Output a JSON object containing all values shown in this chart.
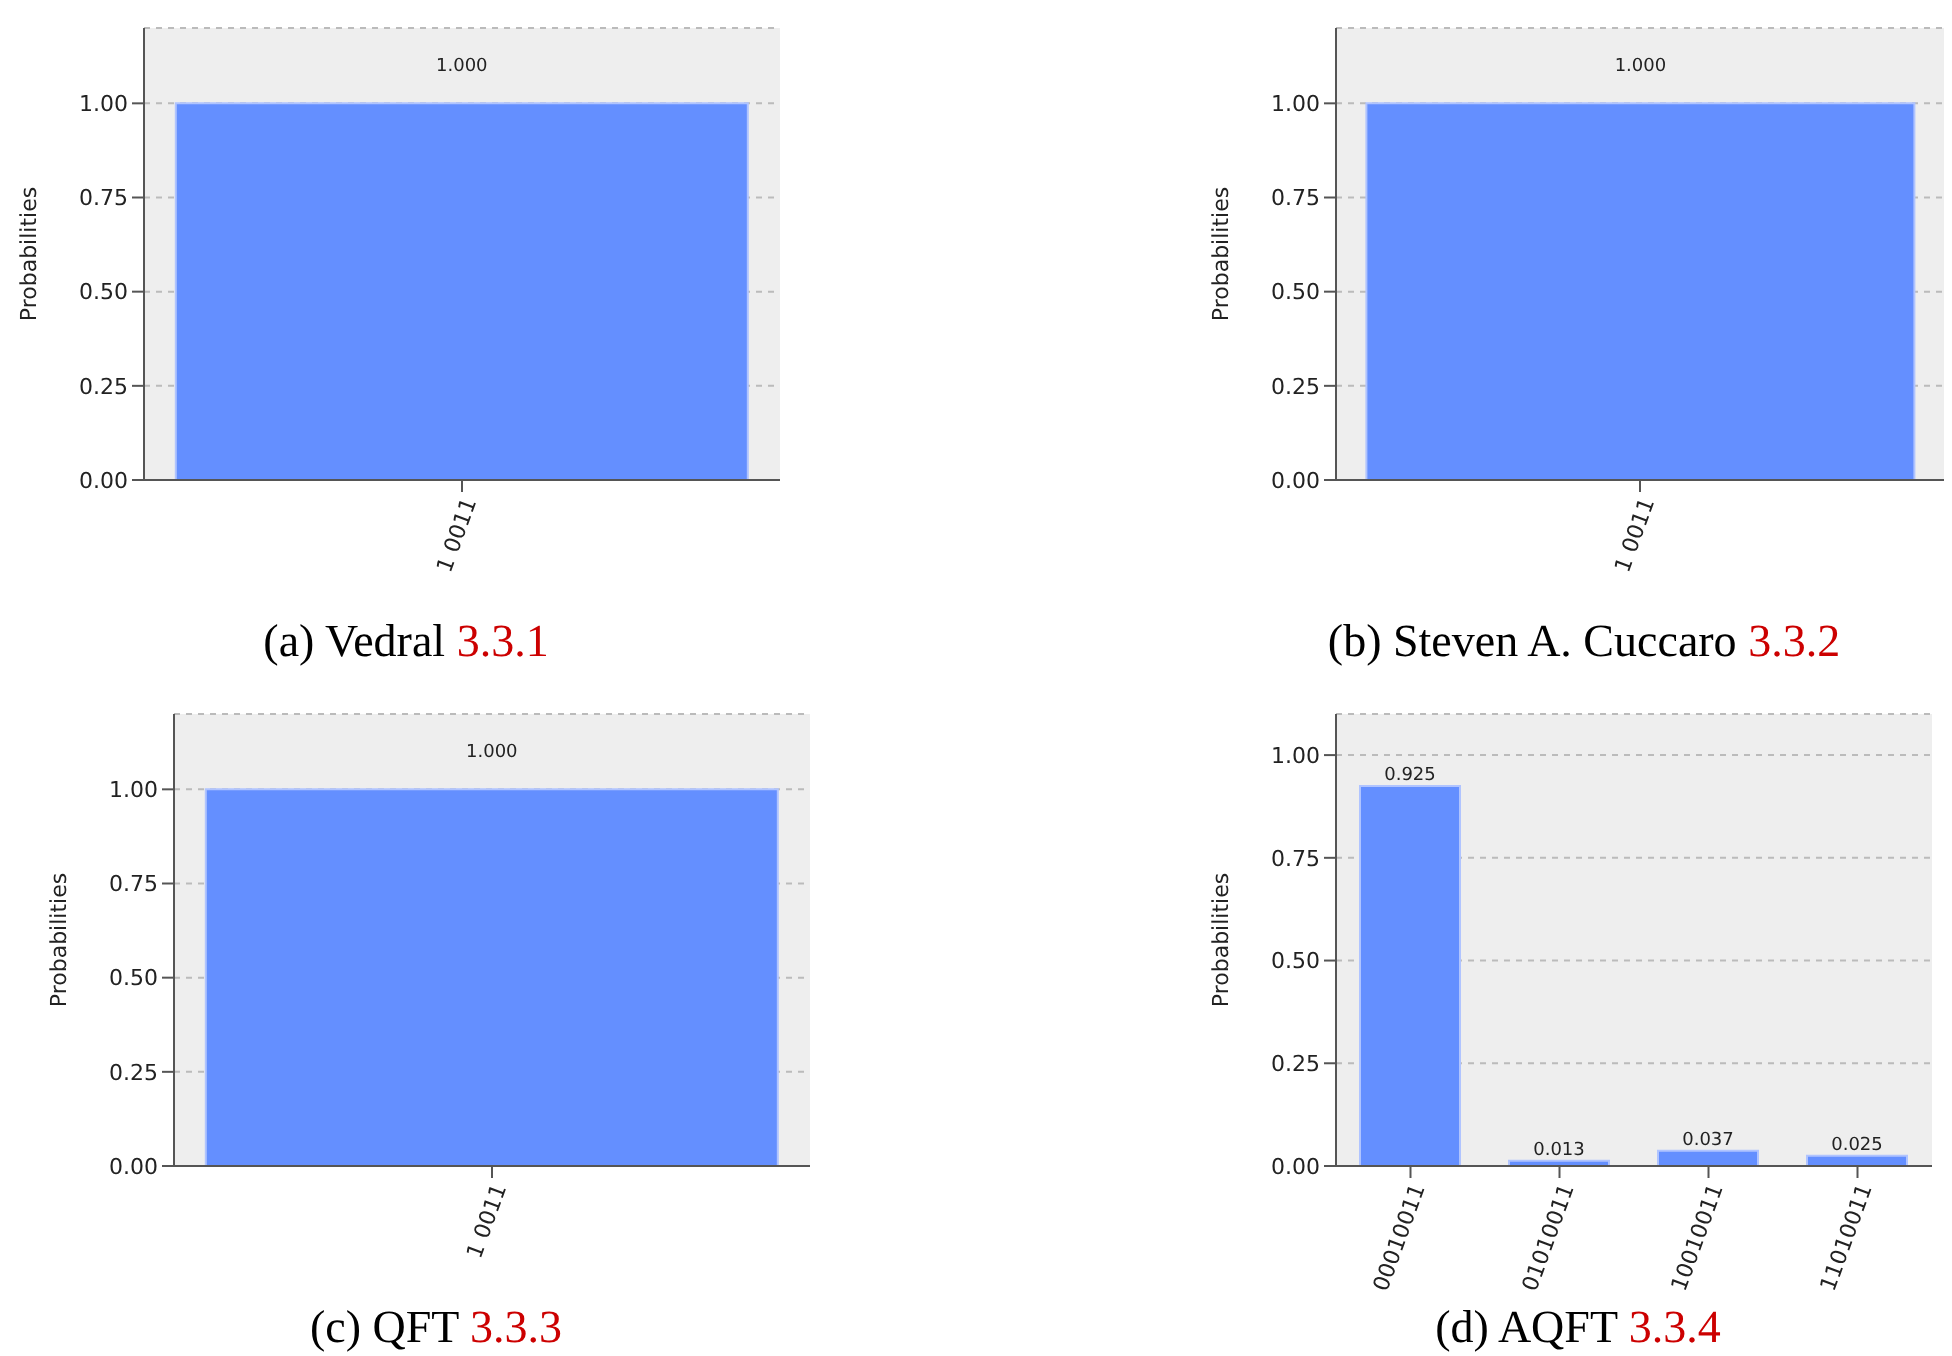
{
  "chart_data": [
    {
      "type": "bar",
      "title": "(a) Vedral 3.3.1",
      "ylabel": "Probabilities",
      "categories": [
        "1 0011"
      ],
      "values": [
        1.0
      ],
      "value_labels": [
        "1.000"
      ],
      "color": "#648fff",
      "ylim": [
        0,
        1.2
      ],
      "yticks": [
        {
          "value": 0,
          "label": "0.00"
        },
        {
          "value": 0.25,
          "label": "0.25"
        },
        {
          "value": 0.5,
          "label": "0.50"
        },
        {
          "value": 0.75,
          "label": "0.75"
        },
        {
          "value": 1,
          "label": "1.00"
        }
      ],
      "grid": "y"
    },
    {
      "type": "bar",
      "title": "(b) Steven A. Cuccaro 3.3.2",
      "ylabel": "Probabilities",
      "categories": [
        "1 0011"
      ],
      "values": [
        1.0
      ],
      "value_labels": [
        "1.000"
      ],
      "color": "#648fff",
      "ylim": [
        0,
        1.2
      ],
      "yticks": [
        {
          "value": 0,
          "label": "0.00"
        },
        {
          "value": 0.25,
          "label": "0.25"
        },
        {
          "value": 0.5,
          "label": "0.50"
        },
        {
          "value": 0.75,
          "label": "0.75"
        },
        {
          "value": 1,
          "label": "1.00"
        }
      ],
      "grid": "y"
    },
    {
      "type": "bar",
      "title": "(c) QFT 3.3.3",
      "ylabel": "Probabilities",
      "categories": [
        "1 0011"
      ],
      "values": [
        1.0
      ],
      "value_labels": [
        "1.000"
      ],
      "color": "#648fff",
      "ylim": [
        0,
        1.2
      ],
      "yticks": [
        {
          "value": 0,
          "label": "0.00"
        },
        {
          "value": 0.25,
          "label": "0.25"
        },
        {
          "value": 0.5,
          "label": "0.50"
        },
        {
          "value": 0.75,
          "label": "0.75"
        },
        {
          "value": 1,
          "label": "1.00"
        }
      ],
      "grid": "y"
    },
    {
      "type": "bar",
      "title": "(d) AQFT 3.3.4",
      "ylabel": "Probabilities",
      "categories": [
        "00010011",
        "01010011",
        "10010011",
        "11010011"
      ],
      "values": [
        0.925,
        0.013,
        0.037,
        0.025
      ],
      "value_labels": [
        "0.925",
        "0.013",
        "0.037",
        "0.025"
      ],
      "color": "#648fff",
      "ylim": [
        0,
        1.1
      ],
      "yticks": [
        {
          "value": 0,
          "label": "0.00"
        },
        {
          "value": 0.25,
          "label": "0.25"
        },
        {
          "value": 0.5,
          "label": "0.50"
        },
        {
          "value": 0.75,
          "label": "0.75"
        },
        {
          "value": 1,
          "label": "1.00"
        }
      ],
      "grid": "y"
    }
  ]
}
